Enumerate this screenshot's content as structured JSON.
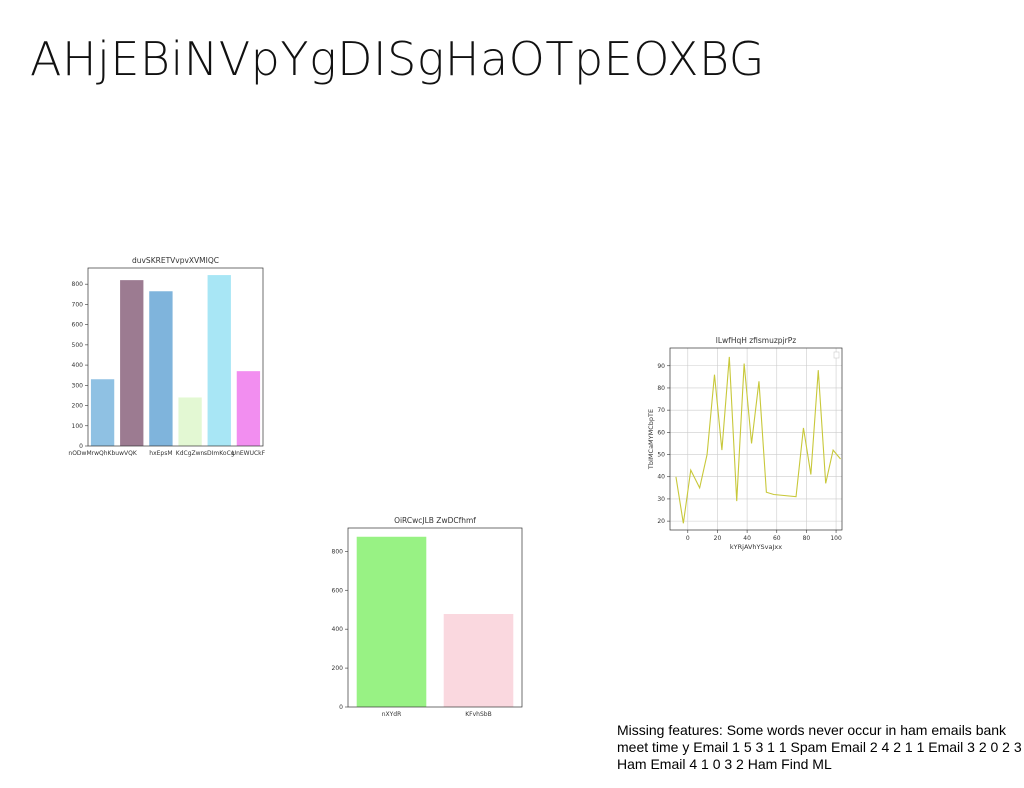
{
  "slide": {
    "title": "AHjEBiNVpYgDISgHaOTpEOXBG",
    "caption": "Missing features: Some words never occur in ham emails bank meet time y Email 1 5 3 1 1 Spam Email 2 4 2 1 1 Email 3 2 0 2 3 Ham Email 4 1 0 3 2 Ham Find ML"
  },
  "chart_data": [
    {
      "id": "chart-1",
      "type": "bar",
      "title": "duvSKRETVvpvXVMIQC",
      "categories": [
        "nODwMrwQhKbuwVQK",
        "",
        "hxEpsM",
        "KdCgZwn",
        "sDImKoCg",
        "UnEWUCkF"
      ],
      "values": [
        330,
        820,
        765,
        240,
        845,
        370
      ],
      "colors": [
        "#8fc1e3",
        "#9c7b91",
        "#7fb4dc",
        "#e3f8d3",
        "#a8e6f5",
        "#f28ef0"
      ],
      "ylim": [
        0,
        880
      ],
      "yticks": [
        0,
        100,
        200,
        300,
        400,
        500,
        600,
        700,
        800
      ],
      "xlabel": "",
      "ylabel": "",
      "grid": false
    },
    {
      "id": "chart-2",
      "type": "line",
      "title": "lLwfHqH zfismuzpjrPz",
      "xlabel": "kYRjAVhYSvaJxx",
      "ylabel": "TbIMCaMYMCbpTE",
      "color": "#c8c83a",
      "x": [
        -8,
        -3,
        2,
        8,
        13,
        18,
        23,
        28,
        33,
        38,
        43,
        48,
        53,
        58,
        73,
        78,
        83,
        88,
        93,
        98,
        103
      ],
      "y": [
        40,
        19,
        43,
        35,
        50,
        86,
        52,
        94,
        29,
        91,
        55,
        83,
        33,
        32,
        31,
        62,
        41,
        88,
        37,
        52,
        48
      ],
      "xlim": [
        -12,
        104
      ],
      "ylim": [
        16,
        98
      ],
      "xticks": [
        0,
        20,
        40,
        60,
        80,
        100
      ],
      "yticks": [
        20,
        30,
        40,
        50,
        60,
        70,
        80,
        90
      ],
      "grid": true
    },
    {
      "id": "chart-3",
      "type": "bar",
      "title": "OiRCwcJLB ZwDCfhmf",
      "categories": [
        "nXYdR",
        "KFvhSbB"
      ],
      "values": [
        875,
        478
      ],
      "colors": [
        "#98f284",
        "#fad8df"
      ],
      "ylim": [
        0,
        920
      ],
      "yticks": [
        0,
        200,
        400,
        600,
        800
      ],
      "xlabel": "",
      "ylabel": "",
      "grid": false
    }
  ]
}
